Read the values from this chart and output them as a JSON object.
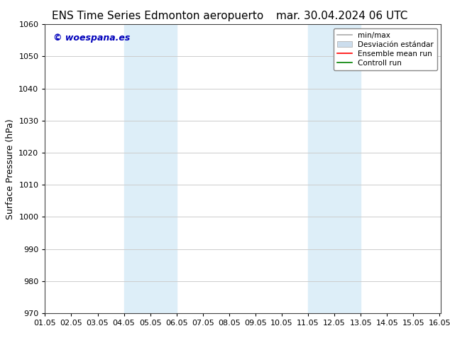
{
  "title_left": "ENS Time Series Edmonton aeropuerto",
  "title_right": "mar. 30.04.2024 06 UTC",
  "ylabel": "Surface Pressure (hPa)",
  "xlim": [
    1.0,
    16.05
  ],
  "ylim": [
    970,
    1060
  ],
  "yticks": [
    970,
    980,
    990,
    1000,
    1010,
    1020,
    1030,
    1040,
    1050,
    1060
  ],
  "xtick_labels": [
    "01.05",
    "02.05",
    "03.05",
    "04.05",
    "05.05",
    "06.05",
    "07.05",
    "08.05",
    "09.05",
    "10.05",
    "11.05",
    "12.05",
    "13.05",
    "14.05",
    "15.05",
    "16.05"
  ],
  "xtick_positions": [
    1.0,
    2.0,
    3.0,
    4.0,
    5.0,
    6.0,
    7.0,
    8.0,
    9.0,
    10.0,
    11.0,
    12.0,
    13.0,
    14.0,
    15.0,
    16.0
  ],
  "shaded_regions": [
    {
      "xmin": 4.0,
      "xmax": 6.0,
      "color": "#ddeef8"
    },
    {
      "xmin": 11.0,
      "xmax": 13.0,
      "color": "#ddeef8"
    }
  ],
  "watermark_text": "© woespana.es",
  "watermark_color": "#0000bb",
  "watermark_fontsize": 9,
  "legend_labels": [
    "min/max",
    "Desviación estándar",
    "Ensemble mean run",
    "Controll run"
  ],
  "legend_colors": [
    "#aaaaaa",
    "#ccdded",
    "#ff0000",
    "#008000"
  ],
  "bg_color": "#ffffff",
  "grid_color": "#cccccc",
  "title_fontsize": 11,
  "tick_fontsize": 8,
  "ylabel_fontsize": 9,
  "legend_fontsize": 7.5
}
